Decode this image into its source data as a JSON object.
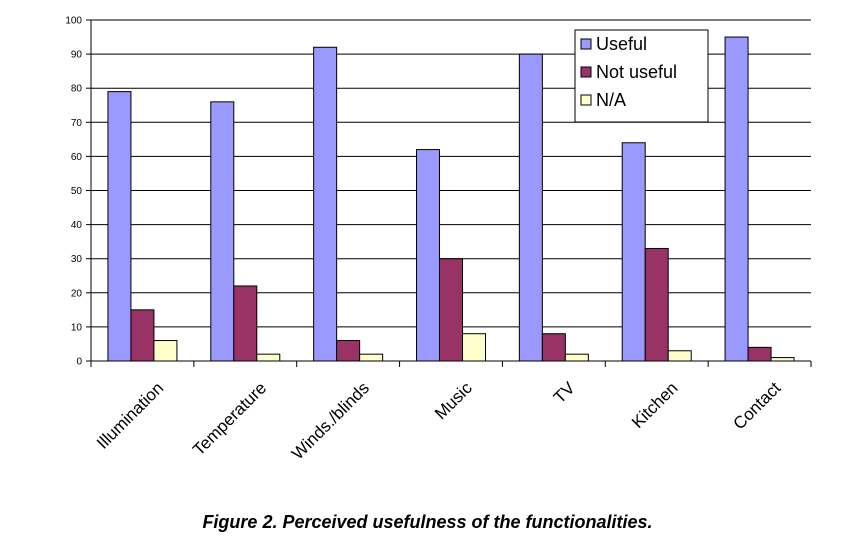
{
  "chart_data": {
    "type": "bar",
    "categories": [
      "Illumination",
      "Temperature",
      "Winds./blinds",
      "Music",
      "TV",
      "Kitchen",
      "Contact"
    ],
    "series": [
      {
        "name": "Useful",
        "values": [
          79,
          76,
          92,
          62,
          90,
          64,
          95
        ],
        "color": "#9999FF"
      },
      {
        "name": "Not useful",
        "values": [
          15,
          22,
          6,
          30,
          8,
          33,
          4
        ],
        "color": "#993366"
      },
      {
        "name": "N/A",
        "values": [
          6,
          2,
          2,
          8,
          2,
          3,
          1
        ],
        "color": "#FFFFCC"
      }
    ],
    "ylim": [
      0,
      100
    ],
    "yticks": [
      0,
      10,
      20,
      30,
      40,
      50,
      60,
      70,
      80,
      90,
      100
    ],
    "grid": true,
    "legend": "top-right",
    "title": "",
    "xlabel": "",
    "ylabel": ""
  },
  "caption": "Figure 2. Perceived usefulness of the functionalities."
}
